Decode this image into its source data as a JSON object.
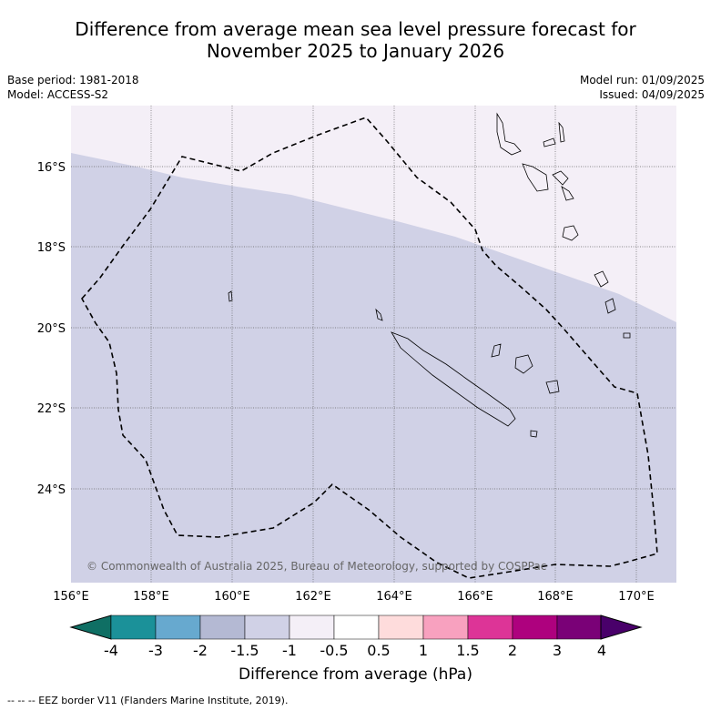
{
  "title_line1": "Difference from average mean sea level pressure forecast for",
  "title_line2": "November 2025 to January 2026",
  "base_period": "Base period: 1981-2018",
  "model": "Model: ACCESS-S2",
  "model_run": "Model run: 01/09/2025",
  "issued": "Issued: 04/09/2025",
  "copyright": "© Commonwealth of Australia 2025, Bureau of Meteorology, supported by COSPPac",
  "lat_labels": [
    "16°S",
    "18°S",
    "20°S",
    "22°S",
    "24°S"
  ],
  "lon_labels": [
    "156°E",
    "158°E",
    "160°E",
    "162°E",
    "164°E",
    "166°E",
    "168°E",
    "170°E"
  ],
  "colorbar": {
    "ticks": [
      "-4",
      "-3",
      "-2",
      "-1.5",
      "-1",
      "-0.5",
      "0.5",
      "1",
      "1.5",
      "2",
      "3",
      "4"
    ],
    "colors": [
      "#1b9199",
      "#67a9cf",
      "#b4b9d3",
      "#d0d1e6",
      "#f4eff7",
      "#ffffff",
      "#fedcdc",
      "#f8a1bf",
      "#dd3497",
      "#ae017e",
      "#7a0177"
    ],
    "under_color": "#0f6f64",
    "over_color": "#49006a",
    "label": "Difference from average (hPa)"
  },
  "fill_colors": {
    "band_minus_1_5_to_minus_1": "#d0d1e6",
    "band_minus_1_to_minus_0_5": "#f4eff7"
  },
  "footer": "--  --  -- EEZ border V11 (Flanders Marine Institute, 2019)."
}
